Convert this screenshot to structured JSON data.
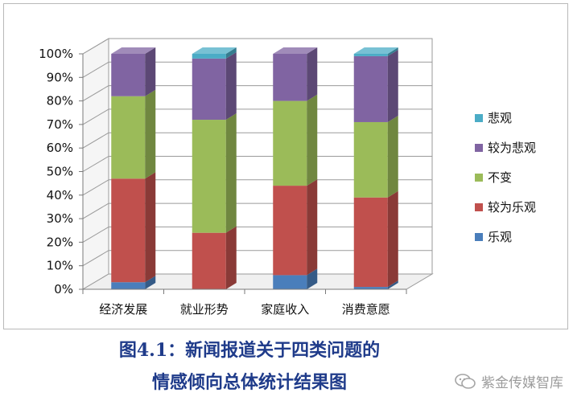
{
  "chart_data": {
    "type": "bar",
    "stacked": true,
    "percent": true,
    "three_d": true,
    "categories": [
      "经济发展",
      "就业形势",
      "家庭收入",
      "消费意愿"
    ],
    "series": [
      {
        "name": "乐观",
        "color": "#4a7ebb",
        "values": [
          3,
          0,
          6,
          1
        ]
      },
      {
        "name": "较为乐观",
        "color": "#c0504d",
        "values": [
          44,
          24,
          38,
          38
        ]
      },
      {
        "name": "不变",
        "color": "#9bbb59",
        "values": [
          35,
          48,
          36,
          32
        ]
      },
      {
        "name": "较为悲观",
        "color": "#8064a2",
        "values": [
          18,
          26,
          20,
          28
        ]
      },
      {
        "name": "悲观",
        "color": "#4bacc6",
        "values": [
          0,
          2,
          0,
          1
        ]
      }
    ],
    "ylim": [
      0,
      100
    ],
    "yticks": [
      "0%",
      "10%",
      "20%",
      "30%",
      "40%",
      "50%",
      "60%",
      "70%",
      "80%",
      "90%",
      "100%"
    ],
    "legend_order": [
      "悲观",
      "较为悲观",
      "不变",
      "较为乐观",
      "乐观"
    ],
    "legend_position": "right",
    "grid": true
  },
  "caption": {
    "line1": "图4.1：新闻报道关于四类问题的",
    "line2": "情感倾向总体统计结果图"
  },
  "watermark": {
    "text": "紫金传媒智库",
    "icon": "wechat-icon"
  }
}
